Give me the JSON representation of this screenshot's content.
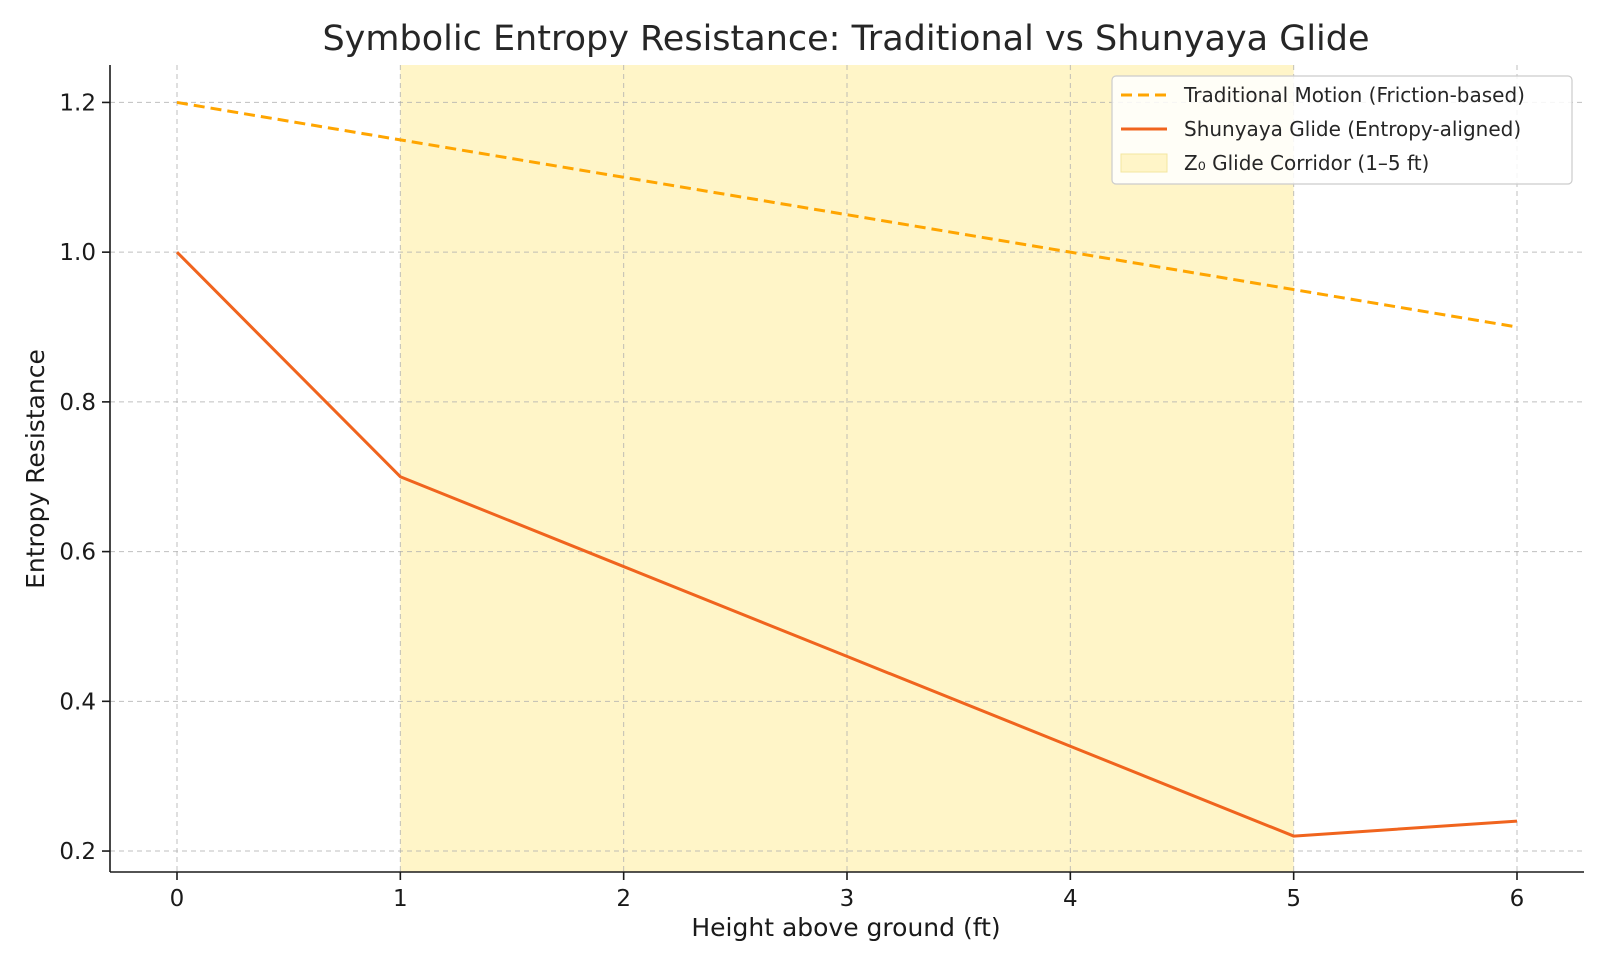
{
  "chart_data": {
    "type": "line",
    "title": "Symbolic Entropy Resistance: Traditional vs Shunyaya Glide",
    "xlabel": "Height above ground (ft)",
    "ylabel": "Entropy Resistance",
    "x": [
      0,
      1,
      2,
      3,
      4,
      5,
      6
    ],
    "xlim": [
      -0.3,
      6.3
    ],
    "ylim": [
      0.172,
      1.25
    ],
    "x_ticks": [
      0,
      1,
      2,
      3,
      4,
      5,
      6
    ],
    "y_ticks": [
      0.2,
      0.4,
      0.6,
      0.8,
      1.0,
      1.2
    ],
    "x_tick_labels": [
      "0",
      "1",
      "2",
      "3",
      "4",
      "5",
      "6"
    ],
    "y_tick_labels": [
      "0.2",
      "0.4",
      "0.6",
      "0.8",
      "1.0",
      "1.2"
    ],
    "grid": true,
    "legend_position": "top-right",
    "series": [
      {
        "name": "Traditional Motion (Friction-based)",
        "values": [
          1.2,
          1.15,
          1.1,
          1.05,
          1.0,
          0.95,
          0.9
        ],
        "style": "dashed",
        "color": "#FFA500"
      },
      {
        "name": "Shunyaya Glide (Entropy-aligned)",
        "values": [
          1.0,
          0.7,
          0.58,
          0.46,
          0.34,
          0.22,
          0.24
        ],
        "style": "solid",
        "color": "#F0641E"
      }
    ],
    "shaded_region": {
      "name": "Z₀ Glide Corridor (1–5 ft)",
      "x_start": 1,
      "x_end": 5,
      "color": "#FFF5C8"
    }
  }
}
